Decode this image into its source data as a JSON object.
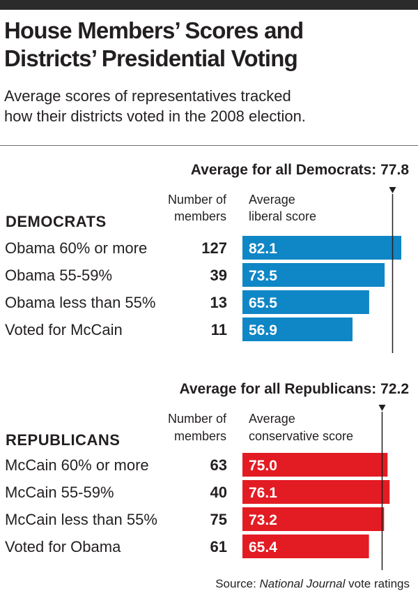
{
  "title_line1": "House Members’ Scores and",
  "title_line2": "Districts’ Presidential Voting",
  "subtitle_line1": "Average scores of representatives tracked",
  "subtitle_line2": "how their districts voted in the 2008 election.",
  "source_prefix": "Source: ",
  "source_title": "National Journal",
  "source_suffix": " vote ratings",
  "chart_data": [
    {
      "type": "bar",
      "group_label": "DEMOCRATS",
      "count_header": [
        "Number of",
        "members"
      ],
      "value_header": [
        "Average",
        "liberal score"
      ],
      "average_label": "Average for all Democrats: 77.8",
      "average": 77.8,
      "color": "#0f86c5",
      "categories": [
        "Obama 60% or more",
        "Obama 55-59%",
        "Obama less than 55%",
        "Voted for McCain"
      ],
      "members": [
        127,
        39,
        13,
        11
      ],
      "values": [
        82.1,
        73.5,
        65.5,
        56.9
      ]
    },
    {
      "type": "bar",
      "group_label": "REPUBLICANS",
      "count_header": [
        "Number of",
        "members"
      ],
      "value_header": [
        "Average",
        "conservative score"
      ],
      "average_label": "Average for all Republicans: 72.2",
      "average": 72.2,
      "color": "#e31b23",
      "categories": [
        "McCain 60% or more",
        "McCain 55-59%",
        "McCain less than 55%",
        "Voted for Obama"
      ],
      "members": [
        63,
        40,
        75,
        61
      ],
      "values": [
        75.0,
        76.1,
        73.2,
        65.4
      ]
    }
  ]
}
